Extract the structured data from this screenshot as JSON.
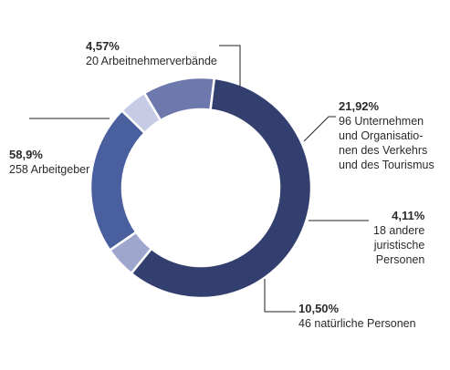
{
  "chart_data": {
    "type": "pie",
    "variant": "donut",
    "start_angle_deg": 7,
    "slices": [
      {
        "pct_label": "58,9%",
        "desc": "258 Arbeitgeber",
        "value": 58.9,
        "color": "#33406f"
      },
      {
        "pct_label": "4,57%",
        "desc": "20 Arbeitnehmerverbände",
        "value": 4.57,
        "color": "#9ea6cd"
      },
      {
        "pct_label": "21,92%",
        "desc": "96 Unternehmen\nund Organisatio-\nnen des Verkehrs\nund des Tourismus",
        "value": 21.92,
        "color": "#4a5f9d"
      },
      {
        "pct_label": "4,11%",
        "desc": "18 andere\njuristische\nPersonen",
        "value": 4.11,
        "color": "#c7cbe6"
      },
      {
        "pct_label": "10,50%",
        "desc": "46 natürliche Personen",
        "value": 10.5,
        "color": "#6d78ad"
      }
    ]
  }
}
